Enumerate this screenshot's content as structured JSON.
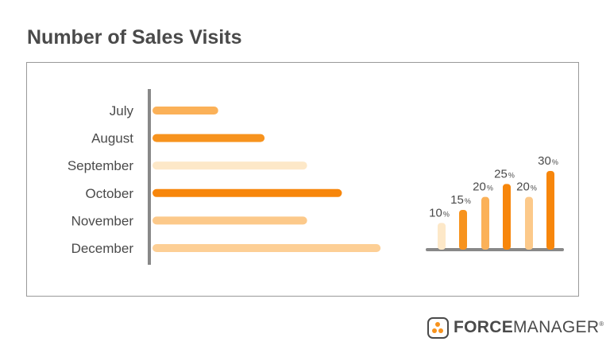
{
  "title": "Number of Sales Visits",
  "logo": {
    "strong": "FORCE",
    "rest": "MANAGER",
    "reg": "®",
    "icon": "forcemanager-logo-icon"
  },
  "chart_data": [
    {
      "type": "bar",
      "orientation": "horizontal",
      "categories": [
        "July",
        "August",
        "September",
        "October",
        "November",
        "December"
      ],
      "values": [
        17,
        29,
        40,
        49,
        40,
        59
      ],
      "xlim": [
        0,
        60
      ],
      "colors": [
        "#fbb158",
        "#f7931e",
        "#fde8c8",
        "#f7860b",
        "#fcc98a",
        "#fdcf95"
      ],
      "grid": false
    },
    {
      "type": "bar",
      "categories": [
        "",
        "",
        "",
        "",
        "",
        ""
      ],
      "values": [
        10,
        15,
        20,
        25,
        20,
        30
      ],
      "labels": [
        "10",
        "15",
        "20",
        "25",
        "20",
        "30"
      ],
      "unit": "%",
      "ylim": [
        0,
        32
      ],
      "colors": [
        "#fde8c8",
        "#f7931e",
        "#fbb158",
        "#f7860b",
        "#fcc98a",
        "#f7860b"
      ],
      "grid": false
    }
  ]
}
